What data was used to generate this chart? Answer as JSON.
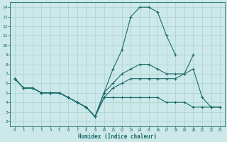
{
  "xlabel": "Humidex (Indice chaleur)",
  "bg_color": "#cce8e8",
  "grid_color": "#aad0d0",
  "line_color": "#1a6b6b",
  "xlim": [
    -0.5,
    23.5
  ],
  "ylim": [
    1.5,
    14.5
  ],
  "xticks": [
    0,
    1,
    2,
    3,
    4,
    5,
    6,
    7,
    8,
    9,
    10,
    11,
    12,
    13,
    14,
    15,
    16,
    17,
    18,
    19,
    20,
    21,
    22,
    23
  ],
  "yticks": [
    2,
    3,
    4,
    5,
    6,
    7,
    8,
    9,
    10,
    11,
    12,
    13,
    14
  ],
  "line1": {
    "x": [
      0,
      1,
      2,
      3,
      4,
      5,
      6,
      7,
      8,
      9,
      10,
      11,
      12,
      13,
      14,
      15,
      16,
      17,
      18
    ],
    "y": [
      6.5,
      5.5,
      5.5,
      5.0,
      5.0,
      5.0,
      4.5,
      4.0,
      3.5,
      2.5,
      5.0,
      7.5,
      9.5,
      13.0,
      14.0,
      14.0,
      13.5,
      11.0,
      9.0
    ]
  },
  "line2": {
    "x": [
      0,
      1,
      2,
      3,
      4,
      5,
      6,
      7,
      8,
      9,
      10,
      11,
      12,
      13,
      14,
      15,
      16,
      17,
      18,
      19,
      20
    ],
    "y": [
      6.5,
      5.5,
      5.5,
      5.0,
      5.0,
      5.0,
      4.5,
      4.0,
      3.5,
      2.5,
      5.0,
      6.0,
      7.0,
      7.5,
      8.0,
      8.0,
      7.5,
      7.0,
      7.0,
      7.0,
      9.0
    ]
  },
  "line3": {
    "x": [
      0,
      1,
      2,
      3,
      4,
      5,
      6,
      7,
      8,
      9,
      10,
      11,
      12,
      13,
      14,
      15,
      16,
      17,
      18,
      19,
      20,
      21,
      22,
      23
    ],
    "y": [
      6.5,
      5.5,
      5.5,
      5.0,
      5.0,
      5.0,
      4.5,
      4.0,
      3.5,
      2.5,
      4.5,
      5.5,
      6.0,
      6.5,
      6.5,
      6.5,
      6.5,
      6.5,
      6.5,
      7.0,
      7.5,
      4.5,
      3.5,
      3.5
    ]
  },
  "line4": {
    "x": [
      0,
      1,
      2,
      3,
      4,
      5,
      6,
      7,
      8,
      9,
      10,
      11,
      12,
      13,
      14,
      15,
      16,
      17,
      18,
      19,
      20,
      21,
      22,
      23
    ],
    "y": [
      6.5,
      5.5,
      5.5,
      5.0,
      5.0,
      5.0,
      4.5,
      4.0,
      3.5,
      2.5,
      4.5,
      4.5,
      4.5,
      4.5,
      4.5,
      4.5,
      4.5,
      4.0,
      4.0,
      4.0,
      3.5,
      3.5,
      3.5,
      3.5
    ]
  }
}
